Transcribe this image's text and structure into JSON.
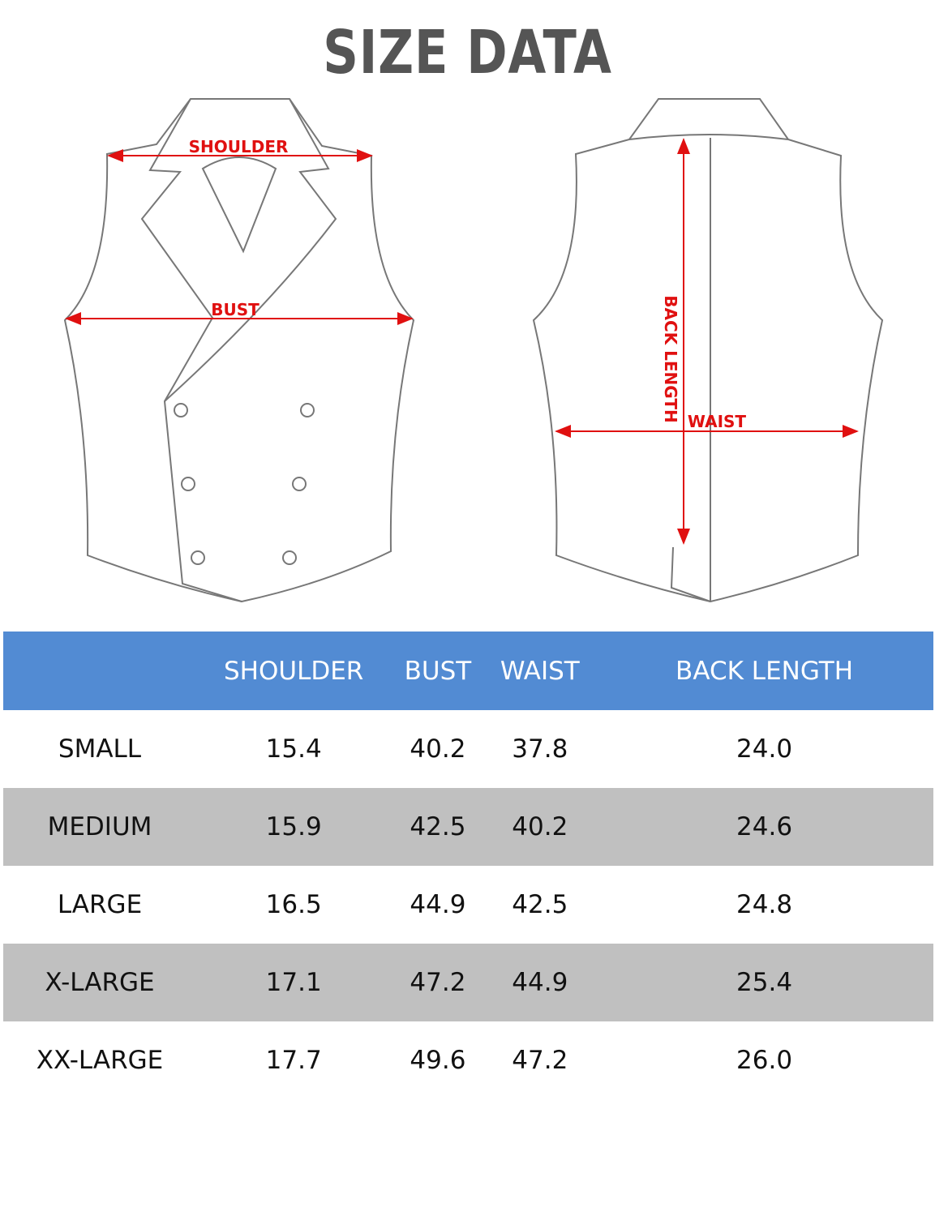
{
  "title": "SIZE DATA",
  "diagram_labels": {
    "shoulder": "SHOULDER",
    "bust": "BUST",
    "back_length": "BACK LENGTH",
    "waist": "WAIST"
  },
  "colors": {
    "header": "#528bd3",
    "alt_row": "#c0c0c0",
    "measure": "#e01010"
  },
  "table": {
    "headers": [
      "",
      "SHOULDER",
      "BUST",
      "WAIST",
      "BACK LENGTH"
    ],
    "rows": [
      [
        "SMALL",
        "15.4",
        "40.2",
        "37.8",
        "24.0"
      ],
      [
        "MEDIUM",
        "15.9",
        "42.5",
        "40.2",
        "24.6"
      ],
      [
        "LARGE",
        "16.5",
        "44.9",
        "42.5",
        "24.8"
      ],
      [
        "X-LARGE",
        "17.1",
        "47.2",
        "44.9",
        "25.4"
      ],
      [
        "XX-LARGE",
        "17.7",
        "49.6",
        "47.2",
        "26.0"
      ]
    ]
  }
}
